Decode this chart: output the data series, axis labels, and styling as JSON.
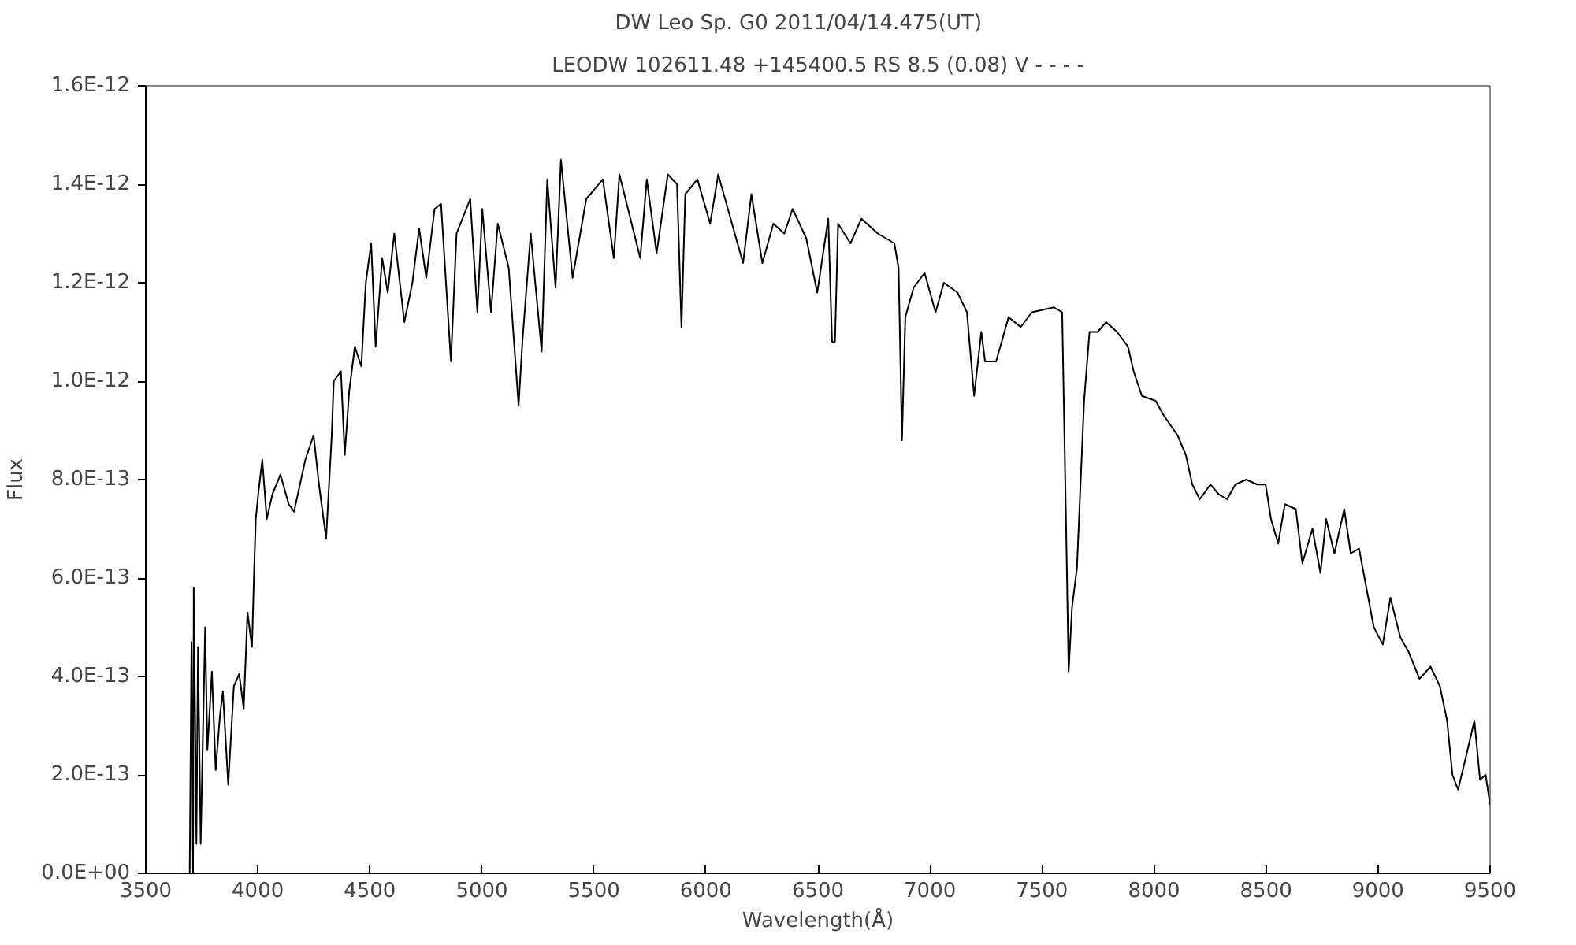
{
  "chart_data": {
    "type": "line",
    "title": "DW Leo    Sp. G0    2011/04/14.475(UT)",
    "subtitle": "LEODW 102611.48 +145400.5 RS 8.5 (0.08) V - - - -",
    "xlabel": "Wavelength(Å)",
    "ylabel": "Flux",
    "xlim": [
      3500,
      9500
    ],
    "xticks": [
      3500,
      4000,
      4500,
      5000,
      5500,
      6000,
      6500,
      7000,
      7500,
      8000,
      8500,
      9000,
      9500
    ],
    "ylim": [
      0,
      1.6e-12
    ],
    "yticks": [
      {
        "value": 0,
        "label": "0.0E+00"
      },
      {
        "value": 2e-13,
        "label": "2.0E-13"
      },
      {
        "value": 4e-13,
        "label": "4.0E-13"
      },
      {
        "value": 6e-13,
        "label": "6.0E-13"
      },
      {
        "value": 8e-13,
        "label": "8.0E-13"
      },
      {
        "value": 1e-12,
        "label": "1.0E-12"
      },
      {
        "value": 1.2e-12,
        "label": "1.2E-12"
      },
      {
        "value": 1.4e-12,
        "label": "1.4E-12"
      },
      {
        "value": 1.6e-12,
        "label": "1.6E-12"
      }
    ],
    "grid": false,
    "marker": "none",
    "line_style": "solid",
    "series": [
      {
        "color": "#000000",
        "x": [
          3696,
          3704,
          3711,
          3714,
          3726,
          3733,
          3745,
          3765,
          3775,
          3795,
          3812,
          3831,
          3844,
          3868,
          3893,
          3917,
          3937,
          3954,
          3974,
          3984,
          3991,
          4003,
          4020,
          4040,
          4065,
          4101,
          4138,
          4162,
          4212,
          4249,
          4273,
          4305,
          4330,
          4339,
          4371,
          4388,
          4408,
          4433,
          4462,
          4482,
          4506,
          4526,
          4555,
          4580,
          4609,
          4654,
          4690,
          4720,
          4752,
          4789,
          4818,
          4862,
          4887,
          4948,
          4980,
          5002,
          5041,
          5071,
          5120,
          5164,
          5181,
          5218,
          5267,
          5292,
          5329,
          5353,
          5405,
          5466,
          5540,
          5589,
          5614,
          5707,
          5736,
          5780,
          5830,
          5871,
          5891,
          5908,
          5962,
          6019,
          6055,
          6141,
          6166,
          6203,
          6252,
          6301,
          6350,
          6387,
          6448,
          6497,
          6546,
          6563,
          6576,
          6590,
          6645,
          6694,
          6767,
          6841,
          6860,
          6875,
          6890,
          6927,
          6976,
          7025,
          7062,
          7123,
          7165,
          7197,
          7229,
          7246,
          7295,
          7351,
          7405,
          7455,
          7553,
          7590,
          7607,
          7619,
          7634,
          7656,
          7688,
          7712,
          7749,
          7786,
          7835,
          7884,
          7909,
          7946,
          8007,
          8044,
          8105,
          8142,
          8171,
          8204,
          8252,
          8289,
          8326,
          8363,
          8412,
          8461,
          8498,
          8522,
          8554,
          8584,
          8633,
          8662,
          8707,
          8743,
          8768,
          8805,
          8849,
          8878,
          8915,
          8952,
          8981,
          9021,
          9055,
          9099,
          9136,
          9185,
          9234,
          9276,
          9308,
          9332,
          9357,
          9394,
          9430,
          9455,
          9480,
          9500
        ],
        "values": [
          0,
          4.7e-13,
          0,
          5.8e-13,
          6e-14,
          4.6e-13,
          6e-14,
          5e-13,
          2.5e-13,
          4.1e-13,
          2.1e-13,
          3.2e-13,
          3.7e-13,
          1.8e-13,
          3.8e-13,
          4.05e-13,
          3.35e-13,
          5.3e-13,
          4.6e-13,
          6.2e-13,
          7.2e-13,
          7.75e-13,
          8.4e-13,
          7.2e-13,
          7.7e-13,
          8.1e-13,
          7.5e-13,
          7.35e-13,
          8.4e-13,
          8.9e-13,
          7.9e-13,
          6.8e-13,
          8.9e-13,
          1e-12,
          1.02e-12,
          8.5e-13,
          9.8e-13,
          1.07e-12,
          1.03e-12,
          1.2e-12,
          1.28e-12,
          1.07e-12,
          1.25e-12,
          1.18e-12,
          1.3e-12,
          1.12e-12,
          1.2e-12,
          1.31e-12,
          1.21e-12,
          1.35e-12,
          1.36e-12,
          1.04e-12,
          1.3e-12,
          1.37e-12,
          1.14e-12,
          1.35e-12,
          1.14e-12,
          1.32e-12,
          1.23e-12,
          9.5e-13,
          1.08e-12,
          1.3e-12,
          1.06e-12,
          1.41e-12,
          1.19e-12,
          1.45e-12,
          1.21e-12,
          1.37e-12,
          1.41e-12,
          1.25e-12,
          1.42e-12,
          1.25e-12,
          1.41e-12,
          1.26e-12,
          1.42e-12,
          1.4e-12,
          1.11e-12,
          1.38e-12,
          1.41e-12,
          1.32e-12,
          1.42e-12,
          1.28e-12,
          1.24e-12,
          1.38e-12,
          1.24e-12,
          1.32e-12,
          1.3e-12,
          1.35e-12,
          1.29e-12,
          1.18e-12,
          1.33e-12,
          1.08e-12,
          1.08e-12,
          1.32e-12,
          1.28e-12,
          1.33e-12,
          1.3e-12,
          1.28e-12,
          1.23e-12,
          8.8e-13,
          1.13e-12,
          1.19e-12,
          1.22e-12,
          1.14e-12,
          1.2e-12,
          1.18e-12,
          1.14e-12,
          9.7e-13,
          1.1e-12,
          1.04e-12,
          1.04e-12,
          1.13e-12,
          1.11e-12,
          1.14e-12,
          1.15e-12,
          1.14e-12,
          7.2e-13,
          4.1e-13,
          5.4e-13,
          6.2e-13,
          9.6e-13,
          1.1e-12,
          1.1e-12,
          1.12e-12,
          1.1e-12,
          1.07e-12,
          1.02e-12,
          9.7e-13,
          9.6e-13,
          9.3e-13,
          8.9e-13,
          8.5e-13,
          7.9e-13,
          7.6e-13,
          7.9e-13,
          7.7e-13,
          7.6e-13,
          7.9e-13,
          8e-13,
          7.9e-13,
          7.9e-13,
          7.2e-13,
          6.7e-13,
          7.5e-13,
          7.4e-13,
          6.3e-13,
          7e-13,
          6.1e-13,
          7.2e-13,
          6.5e-13,
          7.4e-13,
          6.5e-13,
          6.6e-13,
          5.7e-13,
          5e-13,
          4.65e-13,
          5.6e-13,
          4.8e-13,
          4.5e-13,
          3.95e-13,
          4.2e-13,
          3.8e-13,
          3.1e-13,
          2e-13,
          1.7e-13,
          2.4e-13,
          3.1e-13,
          1.9e-13,
          2e-13,
          1.4e-13
        ]
      }
    ]
  }
}
